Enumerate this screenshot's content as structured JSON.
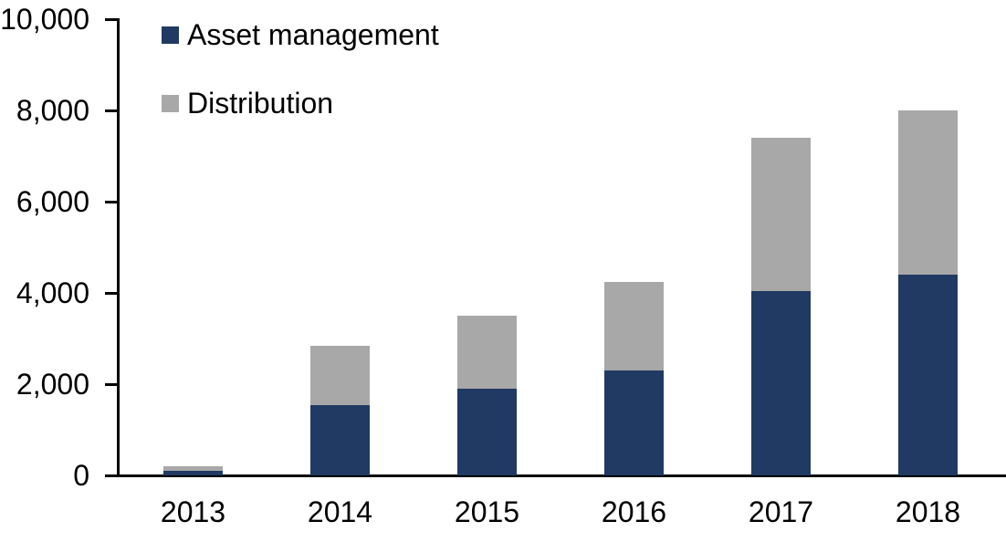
{
  "chart_data": {
    "type": "bar",
    "stacked": true,
    "title": "",
    "xlabel": "",
    "ylabel": "",
    "categories": [
      "2013",
      "2014",
      "2015",
      "2016",
      "2017",
      "2018"
    ],
    "series": [
      {
        "name": "Asset management",
        "color": "#213A63",
        "values": [
          100,
          1550,
          1900,
          2300,
          4050,
          4400
        ]
      },
      {
        "name": "Distribution",
        "color": "#A8A8A8",
        "values": [
          100,
          1300,
          1600,
          1950,
          3350,
          3600
        ]
      }
    ],
    "totals": [
      200,
      2850,
      3500,
      4250,
      7400,
      8000
    ],
    "ylim": [
      0,
      10000
    ],
    "ytick_interval": 2000,
    "ytick_labels": [
      "0",
      "2,000",
      "4,000",
      "6,000",
      "8,000",
      "10,000"
    ],
    "grid": false,
    "legend_position": "top-left",
    "axis_color": "#000000",
    "background_color": "#ffffff"
  }
}
